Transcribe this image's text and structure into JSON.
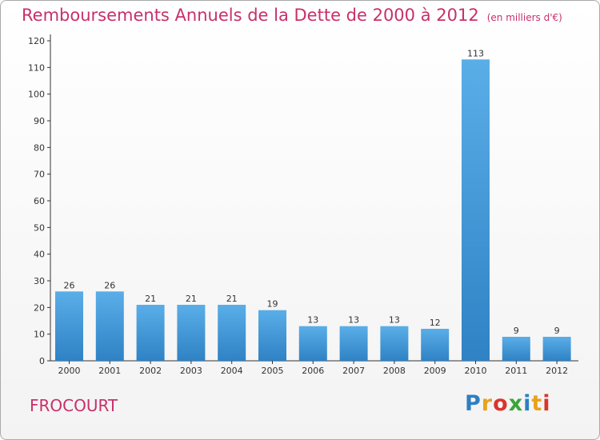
{
  "header": {
    "title": "Remboursements Annuels de la Dette de 2000 à 2012",
    "unit": "(en milliers d'€)"
  },
  "footer": {
    "town": "FROCOURT",
    "logo": "Proxiti"
  },
  "colors": {
    "title": "#c8306a",
    "bar_top": "#5aaee8",
    "bar_bottom": "#2f82c4",
    "axis": "#333333"
  },
  "chart_data": {
    "type": "bar",
    "title": "Remboursements Annuels de la Dette de 2000 à 2012",
    "subtitle": "(en milliers d'€)",
    "xlabel": "",
    "ylabel": "",
    "categories": [
      "2000",
      "2001",
      "2002",
      "2003",
      "2004",
      "2005",
      "2006",
      "2007",
      "2008",
      "2009",
      "2010",
      "2011",
      "2012"
    ],
    "values": [
      26,
      26,
      21,
      21,
      21,
      19,
      13,
      13,
      13,
      12,
      113,
      9,
      9
    ],
    "ylim": [
      0,
      120
    ],
    "yticks": [
      0,
      10,
      20,
      30,
      40,
      50,
      60,
      70,
      80,
      90,
      100,
      110,
      120
    ],
    "grid": false,
    "legend": "none"
  }
}
